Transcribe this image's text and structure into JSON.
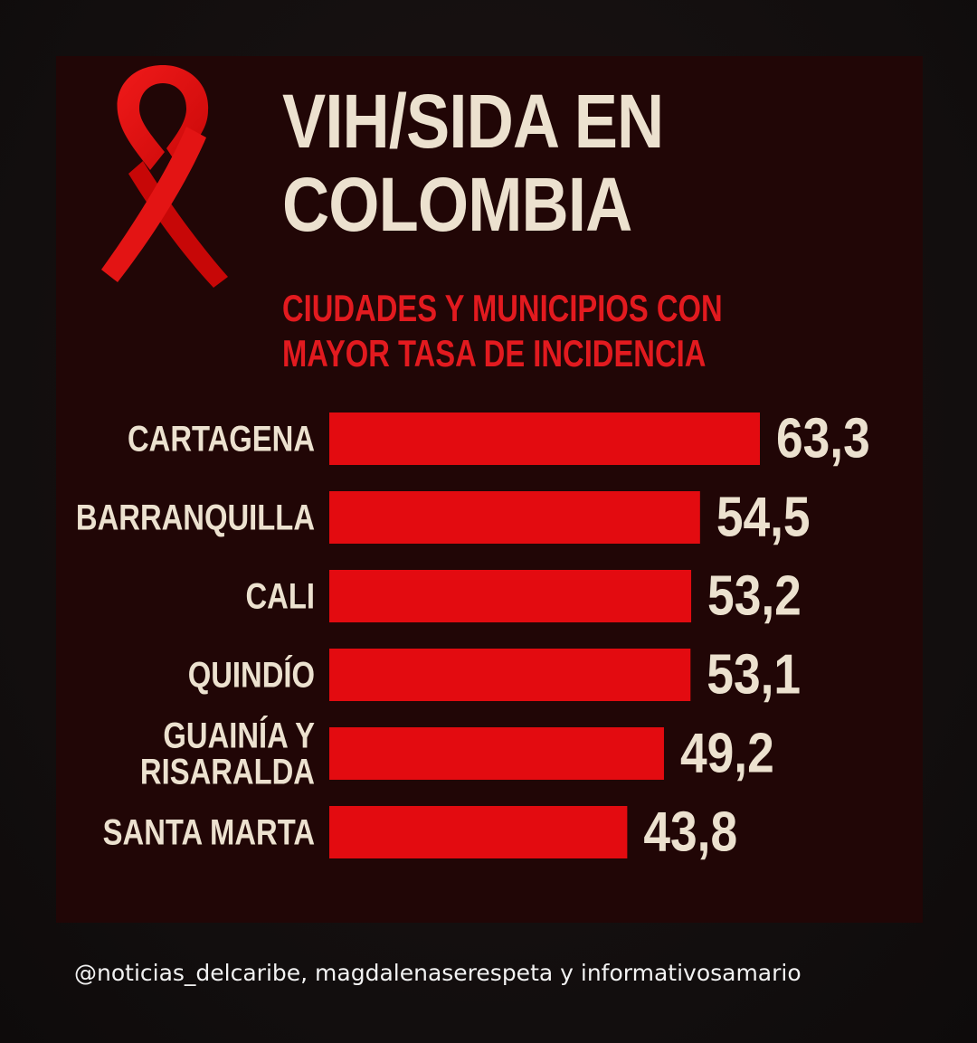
{
  "header": {
    "title_lines": [
      "VIH/SIDA EN",
      "COLOMBIA"
    ],
    "subtitle_lines": [
      "CIUDADES Y MUNICIPIOS CON",
      "MAYOR TASA DE INCIDENCIA"
    ],
    "ribbon_icon": "awareness-ribbon-icon"
  },
  "colors": {
    "background": "#151111",
    "card": "#210606",
    "bar": "#e30b10",
    "title": "#ece1cf",
    "subtitle": "#e21a1f",
    "labels": "#ece1cf"
  },
  "chart_data": {
    "type": "bar",
    "orientation": "horizontal",
    "title": "VIH/SIDA EN COLOMBIA",
    "subtitle": "CIUDADES Y MUNICIPIOS CON MAYOR TASA DE INCIDENCIA",
    "categories": [
      [
        "CARTAGENA"
      ],
      [
        "BARRANQUILLA"
      ],
      [
        "CALI"
      ],
      [
        "QUINDÍO"
      ],
      [
        "GUAINÍA Y",
        "RISARALDA"
      ],
      [
        "SANTA MARTA"
      ]
    ],
    "values": [
      63.3,
      54.5,
      53.2,
      53.1,
      49.2,
      43.8
    ],
    "value_labels": [
      "63,3",
      "54,5",
      "53,2",
      "53,1",
      "49,2",
      "43,8"
    ],
    "xlabel": "",
    "ylabel": "",
    "grid": false,
    "legend": "none"
  },
  "footer": {
    "credit": "@noticias_delcaribe, magdalenaserespeta y informativosamario"
  }
}
